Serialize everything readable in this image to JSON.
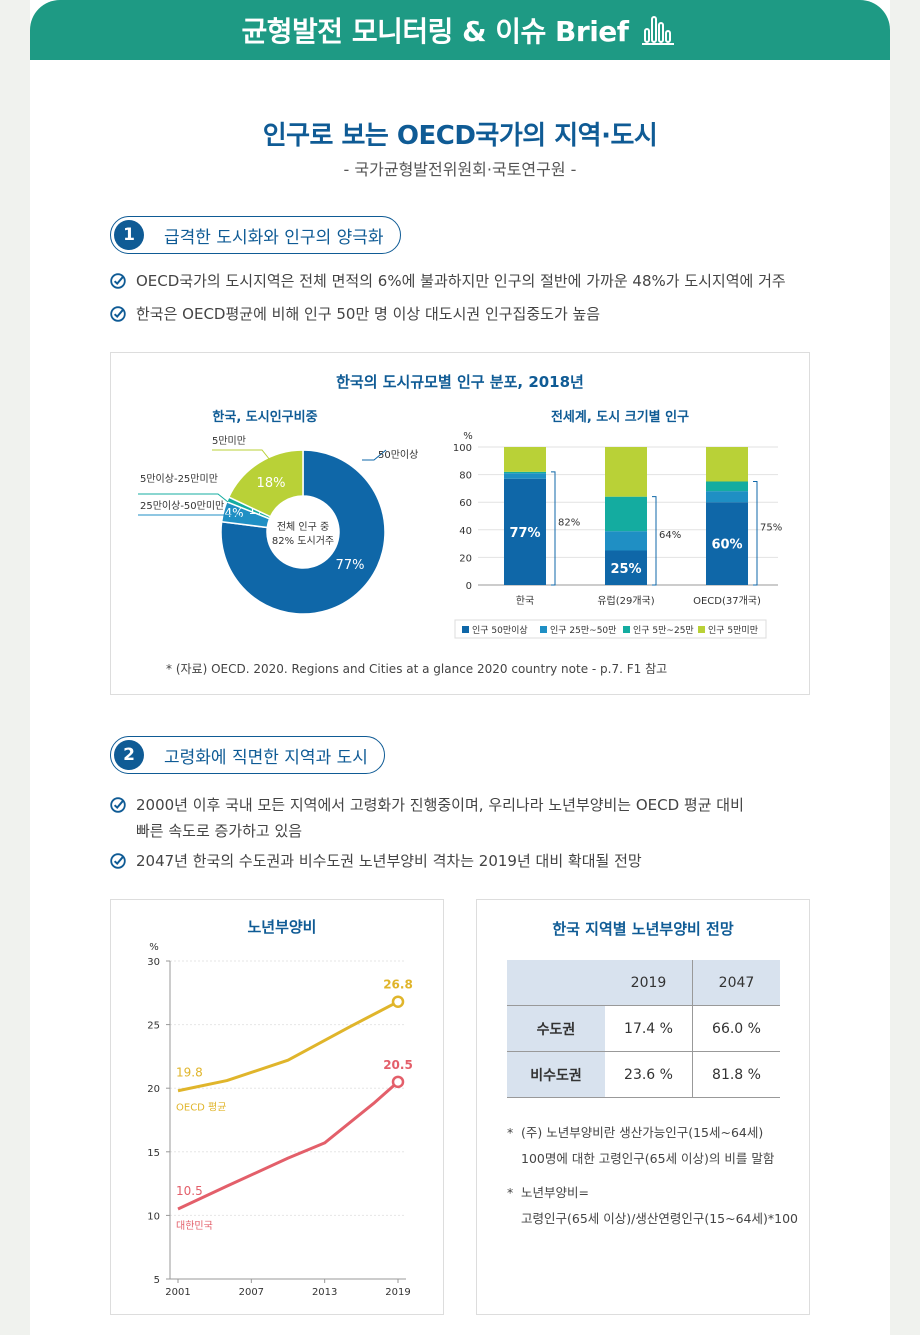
{
  "header": {
    "title": "균형발전 모니터링 & 이슈 Brief"
  },
  "main": {
    "title": "인구로 보는 OECD국가의 지역·도시",
    "subtitle": "- 국가균형발전위원회·국토연구원 -"
  },
  "section1": {
    "num": "1",
    "label": "급격한 도시화와 인구의 양극화",
    "bullets": [
      "OECD국가의 도시지역은 전체 면적의 6%에 불과하지만 인구의 절반에 가까운 48%가 도시지역에 거주",
      "한국은 OECD평균에 비해 인구 50만 명 이상 대도시권 인구집중도가 높음"
    ],
    "figure_title": "한국의 도시규모별 인구 분포, 2018년",
    "source": "* (자료) OECD. 2020. Regions and Cities at a glance 2020 country note - p.7. F1 참고"
  },
  "section2": {
    "num": "2",
    "label": "고령화에 직면한 지역과 도시",
    "bullets": [
      "2000년 이후 국내 모든 지역에서 고령화가 진행중이며, 우리나라 노년부양비는 OECD 평균 대비",
      "빠른 속도로 증가하고 있음",
      "2047년 한국의 수도권과 비수도권 노년부양비 격차는 2019년 대비 확대될 전망"
    ],
    "table_title": "한국 지역별 노년부양비 전망",
    "table": {
      "header": [
        "",
        "2019",
        "2047"
      ],
      "rows": [
        {
          "label": "수도권",
          "v2019": "17.4 %",
          "v2047": "66.0 %"
        },
        {
          "label": "비수도권",
          "v2019": "23.6 %",
          "v2047": "81.8 %"
        }
      ]
    },
    "notes": [
      {
        "star": "*",
        "lines": [
          "(주) 노년부양비란 생산가능인구(15세~64세)",
          "100명에 대한 고령인구(65세 이상)의 비를 말함"
        ]
      },
      {
        "star": "*",
        "lines": [
          "노년부양비=",
          "고령인구(65세 이상)/생산연령인구(15~64세)*100"
        ]
      }
    ]
  },
  "colors": {
    "brand": "#1e9a84",
    "title": "#0f5b95",
    "c50": "#0f67a8",
    "c25": "#1f8fc4",
    "c5": "#14aca0",
    "cUnder": "#b9d137",
    "oecd": "#e0b52b",
    "korea": "#e35f6a"
  },
  "chart_data": [
    {
      "type": "pie",
      "title": "한국, 도시인구비중",
      "center_label": [
        "전체 인구 중",
        "82% 도시거주"
      ],
      "slices": [
        {
          "label": "50만이상",
          "value": 77,
          "text": "77%",
          "color": "#0f67a8"
        },
        {
          "label": "25만이상-50만미만",
          "value": 4,
          "text": "4%",
          "color": "#1f8fc4"
        },
        {
          "label": "5만이상-25만미만",
          "value": 1,
          "text": "1%",
          "color": "#14aca0"
        },
        {
          "label": "5만미만",
          "value": 18,
          "text": "18%",
          "color": "#b9d137"
        }
      ]
    },
    {
      "type": "bar",
      "stacked": true,
      "title": "전세계, 도시 크기별 인구",
      "ylabel": "%",
      "ylim": [
        0,
        100
      ],
      "yticks": [
        0,
        20,
        40,
        60,
        80,
        100
      ],
      "categories": [
        "한국",
        "유럽(29개국)",
        "OECD(37개국)"
      ],
      "series": [
        {
          "name": "인구 50만이상",
          "values": [
            77,
            25,
            60
          ],
          "color": "#0f67a8"
        },
        {
          "name": "인구 25만~50만",
          "values": [
            4,
            14,
            8
          ],
          "color": "#1f8fc4"
        },
        {
          "name": "인구 5만~25만",
          "values": [
            1,
            25,
            7
          ],
          "color": "#14aca0"
        },
        {
          "name": "인구 5만미만",
          "values": [
            18,
            36,
            25
          ],
          "color": "#b9d137"
        }
      ],
      "bar_labels": [
        "77%",
        "25%",
        "60%"
      ],
      "bracket_labels": [
        "82%",
        "64%",
        "75%"
      ],
      "legend_position": "bottom"
    },
    {
      "type": "line",
      "title": "노년부양비",
      "ylabel": "%",
      "ylim": [
        5,
        30
      ],
      "yticks": [
        5,
        10,
        15,
        20,
        25,
        30
      ],
      "xticks": [
        "2001",
        "2007",
        "2013",
        "2019"
      ],
      "series": [
        {
          "name": "OECD 평균",
          "x": [
            2001,
            2005,
            2010,
            2015,
            2019
          ],
          "y": [
            19.8,
            20.6,
            22.2,
            24.8,
            26.8
          ],
          "start_label": "19.8",
          "end_label": "26.8",
          "color": "#e0b52b"
        },
        {
          "name": "대한민국",
          "x": [
            2001,
            2005,
            2010,
            2013,
            2017,
            2019
          ],
          "y": [
            10.5,
            12.3,
            14.5,
            15.7,
            18.8,
            20.5
          ],
          "start_label": "10.5",
          "end_label": "20.5",
          "color": "#e35f6a"
        }
      ]
    }
  ]
}
